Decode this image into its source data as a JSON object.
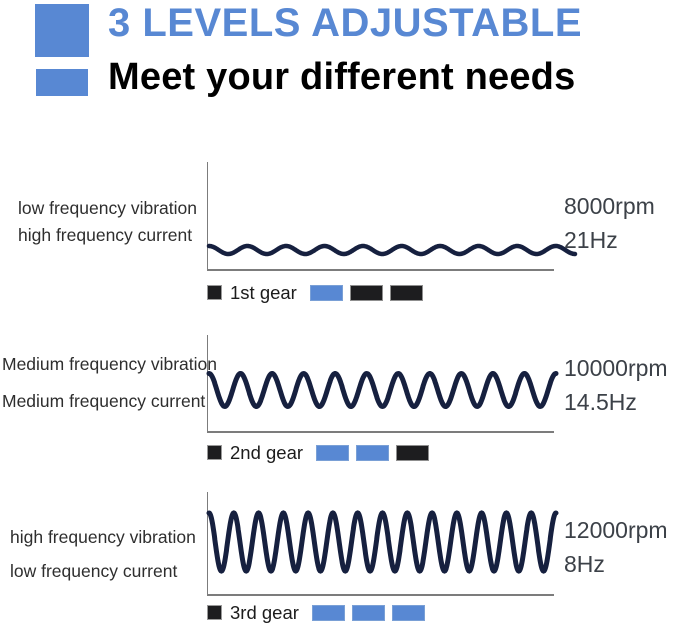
{
  "header": {
    "title": "3 LEVELS ADJUSTABLE",
    "subtitle": "Meet your different needs"
  },
  "colors": {
    "accent_blue": "#5888d3",
    "wave_navy": "#16203f",
    "legend_black": "#1d1d1f",
    "axis_gray": "#7c7c7c"
  },
  "sections": [
    {
      "left_label_line1": "low frequency vibration",
      "left_label_line2": "high frequency current",
      "rpm": "8000rpm",
      "hz": "21Hz",
      "gear_label": "1st gear",
      "indicators": [
        "blue",
        "black",
        "black"
      ],
      "wave": {
        "cycles": 9.5,
        "amplitude": 4,
        "stroke": 4.5
      }
    },
    {
      "left_label_line1": "Medium frequency vibration",
      "left_label_line2": "Medium frequency current",
      "rpm": "10000rpm",
      "hz": "14.5Hz",
      "gear_label": "2nd gear",
      "indicators": [
        "blue",
        "blue",
        "black"
      ],
      "wave": {
        "cycles": 11,
        "amplitude": 16.5,
        "stroke": 5
      }
    },
    {
      "left_label_line1": "high frequency vibration",
      "left_label_line2": "low frequency current",
      "rpm": "12000rpm",
      "hz": "8Hz",
      "gear_label": "3rd gear",
      "indicators": [
        "blue",
        "blue",
        "blue"
      ],
      "wave": {
        "cycles": 14,
        "amplitude": 29,
        "stroke": 5
      }
    }
  ]
}
